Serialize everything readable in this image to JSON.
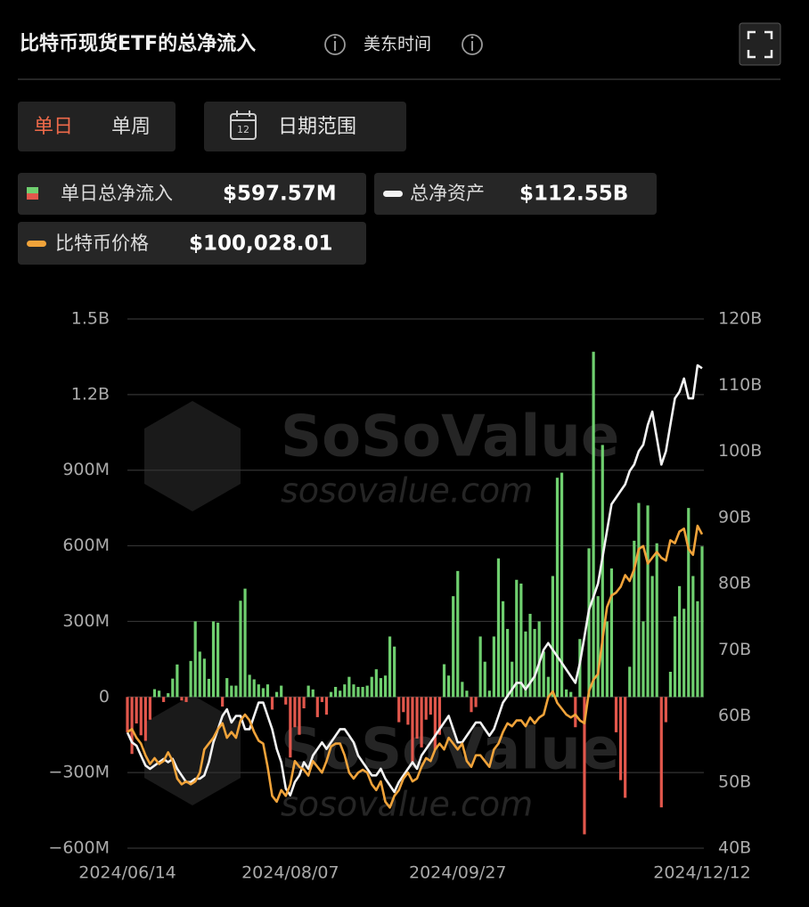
{
  "header": {
    "title": "比特币现货ETF的总净流入",
    "timezone": "美东时间"
  },
  "tabs": [
    "单日",
    "单周"
  ],
  "active_tab": 0,
  "date_range": "日期范围",
  "calendar_icon_day": "12",
  "watermark": {
    "brand": "SoSoValue",
    "site": "sosovalue.com"
  },
  "chart_data": {
    "type": "bar_line",
    "categories": [
      "2024/06/14",
      null,
      null,
      null,
      null,
      null,
      null,
      null,
      null,
      null,
      null,
      null,
      null,
      null,
      null,
      null,
      null,
      null,
      null,
      null,
      null,
      null,
      null,
      null,
      null,
      null,
      null,
      null,
      null,
      null,
      null,
      null,
      null,
      null,
      null,
      null,
      "2024/08/07",
      null,
      null,
      null,
      null,
      null,
      null,
      null,
      null,
      null,
      null,
      null,
      null,
      null,
      null,
      null,
      null,
      null,
      null,
      null,
      null,
      null,
      null,
      null,
      null,
      null,
      null,
      null,
      null,
      null,
      null,
      null,
      null,
      null,
      null,
      null,
      null,
      "2024/09/27",
      null,
      null,
      null,
      null,
      null,
      null,
      null,
      null,
      null,
      null,
      null,
      null,
      null,
      null,
      null,
      null,
      null,
      null,
      null,
      null,
      null,
      null,
      null,
      null,
      null,
      null,
      null,
      null,
      null,
      null,
      null,
      null,
      null,
      null,
      null,
      null,
      null,
      null,
      null,
      null,
      null,
      null,
      null,
      null,
      null,
      null,
      null,
      null,
      null,
      null,
      null,
      null,
      null,
      "2024/12/12"
    ],
    "series": [
      {
        "name": "单日总净流入",
        "type": "bar",
        "axis": "y",
        "color": "#6fcf6f",
        "negative_color": "#e2574c",
        "last_label": "$597.57M",
        "values": [
          -140,
          -226,
          -105,
          -152,
          -174,
          -90,
          31,
          25,
          -20,
          15,
          73,
          129,
          -14,
          -20,
          143,
          300,
          180,
          152,
          72,
          300,
          295,
          -38,
          75,
          45,
          45,
          382,
          430,
          88,
          70,
          50,
          35,
          50,
          -50,
          20,
          45,
          -30,
          -240,
          -120,
          -150,
          -45,
          45,
          30,
          -80,
          -20,
          -70,
          20,
          40,
          25,
          50,
          80,
          50,
          40,
          40,
          45,
          80,
          110,
          75,
          85,
          240,
          200,
          -100,
          -60,
          -110,
          -260,
          -165,
          -200,
          -90,
          -70,
          -210,
          -150,
          130,
          85,
          400,
          500,
          60,
          25,
          -60,
          -40,
          240,
          140,
          25,
          240,
          550,
          380,
          270,
          140,
          465,
          450,
          260,
          330,
          270,
          300,
          180,
          80,
          480,
          870,
          890,
          30,
          20,
          -120,
          230,
          -545,
          590,
          1370,
          400,
          1000,
          300,
          510,
          -140,
          -330,
          -400,
          120,
          620,
          770,
          300,
          760,
          480,
          610,
          -438,
          -100,
          100,
          320,
          440,
          350,
          750,
          480,
          380,
          597.57
        ]
      },
      {
        "name": "总净资产",
        "type": "line",
        "axis": "y2",
        "color": "#f2f2f2",
        "last_label": "$112.55B",
        "values": [
          57.5,
          56,
          55.5,
          54,
          52.5,
          52,
          52.5,
          53,
          53.5,
          53,
          53.5,
          52,
          51,
          50,
          50,
          50.5,
          50.5,
          51,
          53,
          56,
          58,
          60,
          61,
          59,
          60,
          60,
          58,
          58,
          60,
          62,
          62,
          60,
          58,
          55,
          53,
          49,
          48,
          50,
          51,
          53,
          52,
          54,
          55,
          56,
          55,
          56,
          57,
          58,
          58,
          57,
          56,
          54,
          53,
          52,
          51,
          51,
          52,
          50.5,
          49.5,
          48.5,
          50,
          51,
          52,
          53,
          52,
          54,
          55,
          56,
          57,
          58,
          59,
          60,
          58,
          56,
          56,
          57,
          58,
          59,
          59,
          58,
          57,
          58,
          60,
          62,
          63,
          64,
          65,
          65,
          64,
          65,
          66,
          68,
          70,
          71,
          70,
          69,
          68,
          67,
          66,
          65,
          68,
          72,
          76,
          78,
          80,
          84,
          88,
          92,
          93,
          94,
          95,
          97,
          98,
          100,
          101,
          104,
          106,
          102,
          98,
          100,
          104,
          108,
          109,
          111,
          108,
          108,
          113,
          112.55
        ]
      },
      {
        "name": "比特币价格",
        "type": "line",
        "axis": "y3",
        "color": "#f0a33a",
        "last_label": "$100,028.01",
        "values": [
          66000,
          66500,
          65000,
          64000,
          62000,
          60500,
          61500,
          60500,
          61000,
          62500,
          61000,
          58000,
          57000,
          57500,
          57000,
          57500,
          59000,
          63000,
          64000,
          65000,
          66500,
          67500,
          65000,
          66000,
          65000,
          68000,
          69000,
          68000,
          66000,
          64500,
          64000,
          60000,
          55000,
          54000,
          56000,
          55000,
          57000,
          61000,
          60000,
          59500,
          58500,
          61000,
          60000,
          59000,
          61000,
          63500,
          64000,
          64000,
          62000,
          59000,
          58000,
          59000,
          59500,
          59000,
          57000,
          56000,
          57500,
          54000,
          53000,
          55000,
          56000,
          58000,
          59000,
          57500,
          58000,
          60000,
          61500,
          61000,
          63000,
          64000,
          63000,
          65000,
          64000,
          63000,
          64000,
          61000,
          60000,
          62000,
          62000,
          61000,
          60000,
          63000,
          64000,
          66000,
          67500,
          67000,
          68000,
          68000,
          67000,
          68500,
          67500,
          68500,
          69000,
          72000,
          73000,
          71000,
          70000,
          69000,
          68500,
          69000,
          68000,
          67500,
          73000,
          75000,
          76000,
          82000,
          87500,
          89500,
          90000,
          91000,
          93000,
          92000,
          94000,
          97500,
          98000,
          95000,
          96000,
          97000,
          96000,
          95500,
          99000,
          98500,
          100500,
          101000,
          97500,
          96500,
          101500,
          100028.01
        ]
      }
    ],
    "ylim": [
      -600,
      1500
    ],
    "yticks": [
      {
        "value": -600,
        "label": "−600M"
      },
      {
        "value": -300,
        "label": "−300M"
      },
      0,
      {
        "value": 300,
        "label": "300M"
      },
      {
        "value": 600,
        "label": "600M"
      },
      {
        "value": 900,
        "label": "900M"
      },
      {
        "value": 1200,
        "label": "1.2B"
      },
      {
        "value": 1500,
        "label": "1.5B"
      }
    ],
    "y2lim": [
      40,
      120
    ],
    "y2ticks": [
      {
        "value": 40,
        "label": "40B"
      },
      {
        "value": 50,
        "label": "50B"
      },
      {
        "value": 60,
        "label": "60B"
      },
      {
        "value": 70,
        "label": "70B"
      },
      {
        "value": 80,
        "label": "80B"
      },
      {
        "value": 90,
        "label": "90B"
      },
      {
        "value": 100,
        "label": "100B"
      },
      {
        "value": 110,
        "label": "110B"
      },
      {
        "value": 120,
        "label": "120B"
      }
    ],
    "y3lim": [
      46000,
      137100
    ],
    "grid": true
  }
}
